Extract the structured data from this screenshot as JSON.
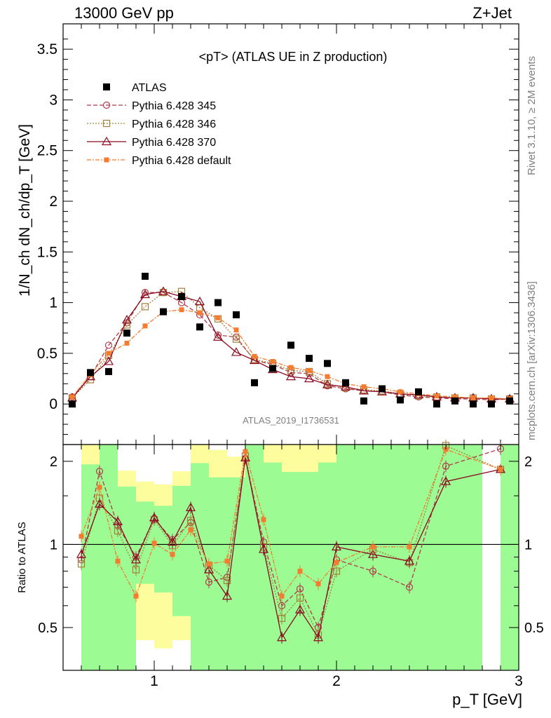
{
  "header": {
    "left": "13000 GeV pp",
    "right": "Z+Jet"
  },
  "side_labels": {
    "rivet": "Rivet 3.1.10, ≥ 2M events",
    "mcplots": "mcplots.cern.ch [arXiv:1306.3436]"
  },
  "watermark": "ATLAS_2019_I1736531",
  "chart_data": [
    {
      "type": "scatter",
      "title": "<pT> (ATLAS UE in Z production)",
      "ylabel": "1/N_ch dN_ch/dp_T [GeV]",
      "xlabel": "p_T [GeV]",
      "xlim": [
        0.5,
        3.0
      ],
      "ylim": [
        -0.4,
        3.75
      ],
      "y_ticks": [
        "0",
        "0.5",
        "1",
        "1.5",
        "2",
        "2.5",
        "3",
        "3.5"
      ],
      "y_tick_values": [
        0,
        0.5,
        1,
        1.5,
        2,
        2.5,
        3,
        3.5
      ],
      "x_ticks": [
        "1",
        "2",
        "3"
      ],
      "x_tick_values": [
        1,
        2,
        3
      ],
      "legend_position": "top-left",
      "x": [
        0.55,
        0.65,
        0.75,
        0.85,
        0.95,
        1.05,
        1.15,
        1.25,
        1.35,
        1.45,
        1.55,
        1.65,
        1.75,
        1.85,
        1.95,
        2.05,
        2.15,
        2.25,
        2.35,
        2.45,
        2.55,
        2.65,
        2.75,
        2.85,
        2.95
      ],
      "series": [
        {
          "name": "ATLAS",
          "color": "#000000",
          "marker": "filled-square",
          "values": [
            0.0,
            0.31,
            0.32,
            0.7,
            1.26,
            0.91,
            1.06,
            0.76,
            1.0,
            0.88,
            0.21,
            0.35,
            0.58,
            0.45,
            0.4,
            0.21,
            0.03,
            0.15,
            0.04,
            0.12,
            0.0,
            0.03,
            0.0,
            0.0,
            0.03
          ]
        },
        {
          "name": "Pythia 6.428 345",
          "color": "#b03a48",
          "marker": "open-circle",
          "dash": "6,3",
          "values": [
            0.07,
            0.27,
            0.58,
            0.8,
            1.1,
            1.1,
            1.0,
            0.88,
            0.68,
            0.66,
            0.43,
            0.39,
            0.31,
            0.3,
            0.18,
            0.15,
            0.13,
            0.12,
            0.09,
            0.07,
            0.06,
            0.05,
            0.05,
            0.04,
            0.05
          ]
        },
        {
          "name": "Pythia 6.428 346",
          "color": "#a3803a",
          "marker": "open-square",
          "dash": "2,2",
          "values": [
            0.06,
            0.24,
            0.48,
            0.78,
            0.96,
            1.1,
            1.11,
            0.95,
            0.84,
            0.64,
            0.44,
            0.4,
            0.33,
            0.32,
            0.2,
            0.16,
            0.14,
            0.13,
            0.1,
            0.08,
            0.07,
            0.06,
            0.06,
            0.05,
            0.05
          ]
        },
        {
          "name": "Pythia 6.428 370",
          "color": "#8b0a1f",
          "marker": "open-triangle",
          "dash": "",
          "values": [
            0.06,
            0.27,
            0.42,
            0.83,
            1.08,
            1.11,
            1.06,
            1.01,
            0.66,
            0.51,
            0.43,
            0.34,
            0.27,
            0.25,
            0.19,
            0.17,
            0.13,
            0.12,
            0.1,
            0.09,
            0.07,
            0.06,
            0.06,
            0.05,
            0.05
          ]
        },
        {
          "name": "Pythia 6.428 default",
          "color": "#f47c30",
          "marker": "filled-small-square",
          "dash": "6,2,2,2",
          "values": [
            0.07,
            0.29,
            0.5,
            0.6,
            0.77,
            0.91,
            0.93,
            0.9,
            0.85,
            0.73,
            0.47,
            0.42,
            0.36,
            0.33,
            0.27,
            0.2,
            0.17,
            0.15,
            0.12,
            0.1,
            0.08,
            0.07,
            0.06,
            0.06,
            0.05
          ]
        }
      ]
    },
    {
      "type": "scatter",
      "ylabel": "Ratio to ATLAS",
      "xlabel": "p_T [GeV]",
      "xlim": [
        0.5,
        3.0
      ],
      "ylim": [
        0.35,
        2.3
      ],
      "y_scale": "log",
      "y_ticks": [
        "0.5",
        "1",
        "2"
      ],
      "y_tick_values": [
        0.5,
        1,
        2
      ],
      "reference_line": 1,
      "band_colors": {
        "inner": "#9cfb93",
        "outer": "#fdfd9e"
      },
      "bins": [
        {
          "lo": 0.5,
          "hi": 0.6,
          "outer": [
            0,
            0
          ],
          "inner": [
            0,
            0
          ]
        },
        {
          "lo": 0.6,
          "hi": 0.7,
          "outer": [
            0.35,
            2.3
          ],
          "inner": [
            0.35,
            1.95
          ]
        },
        {
          "lo": 0.7,
          "hi": 0.8,
          "outer": [
            0.35,
            2.3
          ],
          "inner": [
            0.35,
            2.3
          ]
        },
        {
          "lo": 0.8,
          "hi": 0.9,
          "outer": [
            0.35,
            1.85
          ],
          "inner": [
            0.35,
            1.62
          ]
        },
        {
          "lo": 0.9,
          "hi": 1.0,
          "outer": [
            0.45,
            1.69
          ],
          "inner": [
            0.72,
            1.43
          ]
        },
        {
          "lo": 1.0,
          "hi": 1.1,
          "outer": [
            0.42,
            1.65
          ],
          "inner": [
            0.67,
            1.38
          ]
        },
        {
          "lo": 1.1,
          "hi": 1.2,
          "outer": [
            0.45,
            1.84
          ],
          "inner": [
            0.55,
            1.63
          ]
        },
        {
          "lo": 1.2,
          "hi": 1.3,
          "outer": [
            0.35,
            2.3
          ],
          "inner": [
            0.35,
            1.97
          ]
        },
        {
          "lo": 1.3,
          "hi": 1.4,
          "outer": [
            0.35,
            2.2
          ],
          "inner": [
            0.35,
            1.75
          ]
        },
        {
          "lo": 1.4,
          "hi": 1.5,
          "outer": [
            0.35,
            2.08
          ],
          "inner": [
            0.35,
            1.75
          ]
        },
        {
          "lo": 1.5,
          "hi": 1.6,
          "outer": [
            0.35,
            2.3
          ],
          "inner": [
            0.35,
            2.3
          ]
        },
        {
          "lo": 1.6,
          "hi": 1.7,
          "outer": [
            0.35,
            2.3
          ],
          "inner": [
            0.35,
            1.98
          ]
        },
        {
          "lo": 1.7,
          "hi": 1.8,
          "outer": [
            0.35,
            2.3
          ],
          "inner": [
            0.35,
            1.83
          ]
        },
        {
          "lo": 1.8,
          "hi": 1.9,
          "outer": [
            0.35,
            2.3
          ],
          "inner": [
            0.35,
            1.83
          ]
        },
        {
          "lo": 1.9,
          "hi": 2.0,
          "outer": [
            0.35,
            2.3
          ],
          "inner": [
            0.35,
            1.98
          ]
        },
        {
          "lo": 2.0,
          "hi": 2.1,
          "outer": [
            0.35,
            2.3
          ],
          "inner": [
            0.35,
            2.3
          ]
        },
        {
          "lo": 2.1,
          "hi": 2.2,
          "outer": [
            0.35,
            2.3
          ],
          "inner": [
            0.35,
            2.3
          ]
        },
        {
          "lo": 2.2,
          "hi": 2.3,
          "outer": [
            0.35,
            2.3
          ],
          "inner": [
            0.35,
            2.3
          ]
        },
        {
          "lo": 2.3,
          "hi": 2.4,
          "outer": [
            0.35,
            2.3
          ],
          "inner": [
            0.35,
            2.3
          ]
        },
        {
          "lo": 2.4,
          "hi": 2.5,
          "outer": [
            0.35,
            2.3
          ],
          "inner": [
            0.35,
            2.3
          ]
        },
        {
          "lo": 2.5,
          "hi": 2.6,
          "outer": [
            0.35,
            2.3
          ],
          "inner": [
            0.35,
            2.3
          ]
        },
        {
          "lo": 2.6,
          "hi": 2.7,
          "outer": [
            0.35,
            2.3
          ],
          "inner": [
            0.35,
            2.3
          ]
        },
        {
          "lo": 2.7,
          "hi": 2.8,
          "outer": [
            0.35,
            2.3
          ],
          "inner": [
            0.35,
            2.3
          ]
        },
        {
          "lo": 2.8,
          "hi": 2.9,
          "outer": [
            0,
            0
          ],
          "inner": [
            0,
            0
          ]
        },
        {
          "lo": 2.9,
          "hi": 3.0,
          "outer": [
            0.35,
            2.3
          ],
          "inner": [
            0.35,
            2.3
          ]
        }
      ],
      "x": [
        0.6,
        0.7,
        0.8,
        0.9,
        1.0,
        1.1,
        1.2,
        1.3,
        1.4,
        1.5,
        1.6,
        1.7,
        1.8,
        1.9,
        2.0,
        2.2,
        2.4,
        2.6,
        2.9
      ],
      "series": [
        {
          "name": "Pythia 6.428 345",
          "color": "#b03a48",
          "marker": "open-circle",
          "dash": "6,3",
          "values": [
            0.88,
            1.84,
            1.17,
            0.9,
            1.24,
            1.04,
            1.2,
            0.73,
            0.76,
            2.05,
            1.02,
            0.6,
            0.69,
            0.5,
            0.88,
            0.8,
            0.7,
            1.92,
            2.22
          ]
        },
        {
          "name": "Pythia 6.428 346",
          "color": "#a3803a",
          "marker": "open-square",
          "dash": "2,2",
          "values": [
            0.85,
            1.47,
            1.12,
            0.81,
            1.23,
            0.99,
            1.22,
            0.84,
            0.74,
            2.09,
            0.98,
            0.54,
            0.64,
            0.47,
            0.8,
            0.96,
            0.86,
            2.28,
            1.87
          ]
        },
        {
          "name": "Pythia 6.428 370",
          "color": "#8b0a1f",
          "marker": "open-triangle",
          "dash": "",
          "values": [
            0.92,
            1.4,
            1.21,
            0.88,
            1.25,
            1.02,
            1.36,
            0.81,
            0.65,
            2.06,
            0.96,
            0.46,
            0.58,
            0.46,
            0.98,
            0.92,
            0.87,
            1.69,
            1.87
          ]
        },
        {
          "name": "Pythia 6.428 default",
          "color": "#f47c30",
          "marker": "filled-small-square",
          "dash": "6,2,2,2",
          "values": [
            1.07,
            1.61,
            0.87,
            0.65,
            1.01,
            0.92,
            1.13,
            0.85,
            0.87,
            2.17,
            1.23,
            0.65,
            0.8,
            0.72,
            0.86,
            0.98,
            0.98,
            2.21,
            1.87
          ]
        }
      ]
    }
  ]
}
